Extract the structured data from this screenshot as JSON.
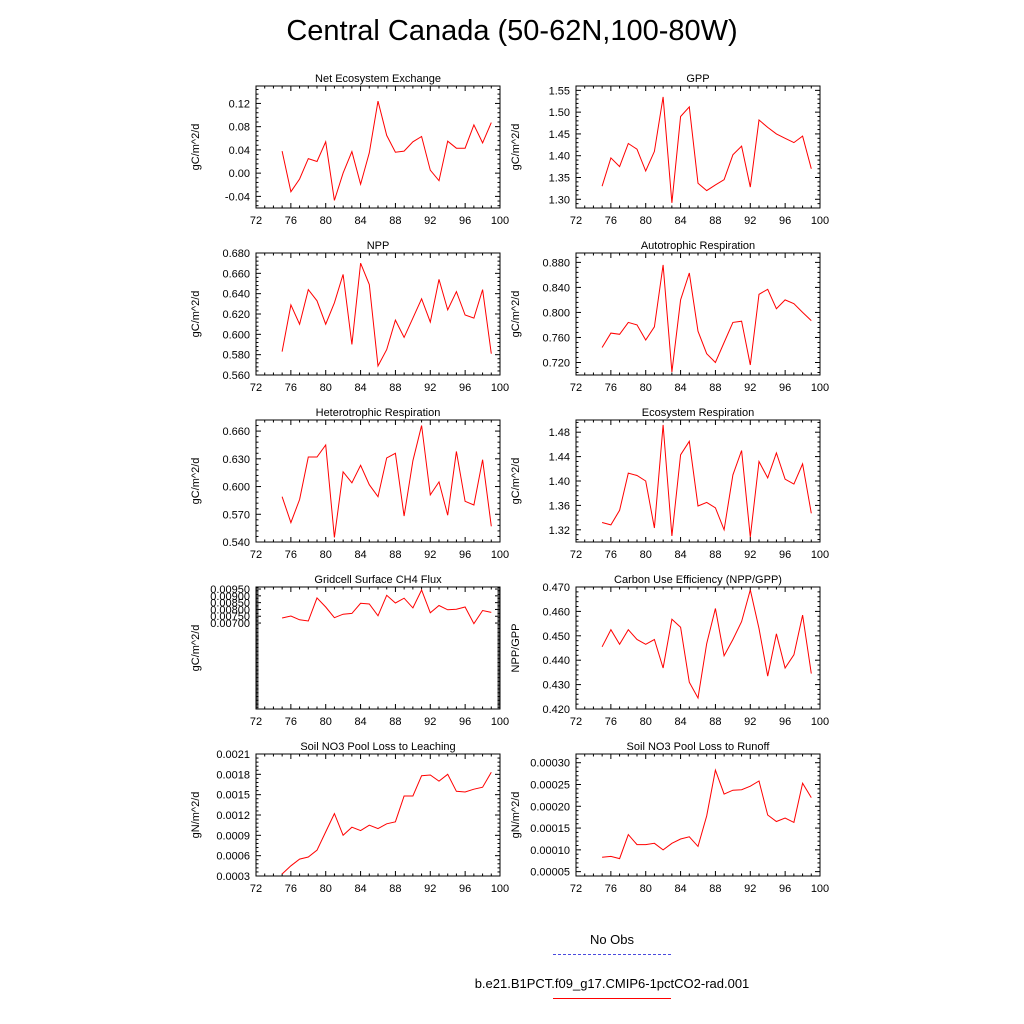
{
  "figure": {
    "title": "Central Canada (50-62N,100-80W)"
  },
  "legend": [
    {
      "label": "No Obs",
      "color": "#4a4adf",
      "style": "dashed"
    },
    {
      "label": "b.e21.B1PCT.f09_g17.CMIP6-1pctCO2-rad.001",
      "color": "#ff0000",
      "style": "solid"
    }
  ],
  "chart_data": [
    {
      "type": "line",
      "title": "Net Ecosystem Exchange",
      "ylabel": "gC/m^2/d",
      "xlim": [
        72,
        100
      ],
      "xticks": [
        72,
        76,
        80,
        84,
        88,
        92,
        96,
        100
      ],
      "ylim": [
        -0.06,
        0.15
      ],
      "yticks": [
        -0.04,
        0.0,
        0.04,
        0.08,
        0.12
      ],
      "ytick_labels": [
        "-0.04",
        "0.00",
        "0.04",
        "0.08",
        "0.12"
      ],
      "series": [
        {
          "color": "#ff0000",
          "x": [
            75,
            76,
            77,
            78,
            79,
            80,
            81,
            82,
            83,
            84,
            85,
            86,
            87,
            88,
            89,
            90,
            91,
            92,
            93,
            94,
            95,
            96,
            97,
            98,
            99
          ],
          "y": [
            0.038,
            -0.032,
            -0.01,
            0.025,
            0.02,
            0.054,
            -0.047,
            0.0,
            0.037,
            -0.019,
            0.035,
            0.124,
            0.065,
            0.036,
            0.038,
            0.054,
            0.063,
            0.005,
            -0.013,
            0.055,
            0.043,
            0.043,
            0.083,
            0.052,
            0.087
          ]
        }
      ]
    },
    {
      "type": "line",
      "title": "GPP",
      "ylabel": "gC/m^2/d",
      "xlim": [
        72,
        100
      ],
      "xticks": [
        72,
        76,
        80,
        84,
        88,
        92,
        96,
        100
      ],
      "ylim": [
        1.28,
        1.56
      ],
      "yticks": [
        1.3,
        1.35,
        1.4,
        1.45,
        1.5,
        1.55
      ],
      "ytick_labels": [
        "1.30",
        "1.35",
        "1.40",
        "1.45",
        "1.50",
        "1.55"
      ],
      "series": [
        {
          "color": "#ff0000",
          "x": [
            75,
            76,
            77,
            78,
            79,
            80,
            81,
            82,
            83,
            84,
            85,
            86,
            87,
            88,
            89,
            90,
            91,
            92,
            93,
            94,
            95,
            96,
            97,
            98,
            99
          ],
          "y": [
            1.33,
            1.395,
            1.375,
            1.428,
            1.415,
            1.365,
            1.41,
            1.535,
            1.292,
            1.49,
            1.512,
            1.337,
            1.32,
            1.333,
            1.345,
            1.402,
            1.422,
            1.328,
            1.482,
            1.465,
            1.45,
            1.44,
            1.43,
            1.445,
            1.37
          ]
        }
      ]
    },
    {
      "type": "line",
      "title": "NPP",
      "ylabel": "gC/m^2/d",
      "xlim": [
        72,
        100
      ],
      "xticks": [
        72,
        76,
        80,
        84,
        88,
        92,
        96,
        100
      ],
      "ylim": [
        0.56,
        0.68
      ],
      "yticks": [
        0.56,
        0.58,
        0.6,
        0.62,
        0.64,
        0.66,
        0.68
      ],
      "ytick_labels": [
        "0.560",
        "0.580",
        "0.600",
        "0.620",
        "0.640",
        "0.660",
        "0.680"
      ],
      "series": [
        {
          "color": "#ff0000",
          "x": [
            75,
            76,
            77,
            78,
            79,
            80,
            81,
            82,
            83,
            84,
            85,
            86,
            87,
            88,
            89,
            90,
            91,
            92,
            93,
            94,
            95,
            96,
            97,
            98,
            99
          ],
          "y": [
            0.583,
            0.629,
            0.61,
            0.644,
            0.633,
            0.61,
            0.631,
            0.659,
            0.59,
            0.67,
            0.649,
            0.569,
            0.585,
            0.614,
            0.597,
            0.616,
            0.635,
            0.612,
            0.654,
            0.624,
            0.642,
            0.619,
            0.616,
            0.644,
            0.581
          ]
        }
      ]
    },
    {
      "type": "line",
      "title": "Autotrophic Respiration",
      "ylabel": "gC/m^2/d",
      "xlim": [
        72,
        100
      ],
      "xticks": [
        72,
        76,
        80,
        84,
        88,
        92,
        96,
        100
      ],
      "ylim": [
        0.7,
        0.895
      ],
      "yticks": [
        0.72,
        0.76,
        0.8,
        0.84,
        0.88
      ],
      "ytick_labels": [
        "0.720",
        "0.760",
        "0.800",
        "0.840",
        "0.880"
      ],
      "series": [
        {
          "color": "#ff0000",
          "x": [
            75,
            76,
            77,
            78,
            79,
            80,
            81,
            82,
            83,
            84,
            85,
            86,
            87,
            88,
            89,
            90,
            91,
            92,
            93,
            94,
            95,
            96,
            97,
            98,
            99
          ],
          "y": [
            0.744,
            0.767,
            0.765,
            0.784,
            0.78,
            0.756,
            0.777,
            0.876,
            0.705,
            0.82,
            0.863,
            0.77,
            0.734,
            0.72,
            0.752,
            0.784,
            0.786,
            0.716,
            0.829,
            0.837,
            0.806,
            0.82,
            0.814,
            0.8,
            0.787
          ]
        }
      ]
    },
    {
      "type": "line",
      "title": "Heterotrophic Respiration",
      "ylabel": "gC/m^2/d",
      "xlim": [
        72,
        100
      ],
      "xticks": [
        72,
        76,
        80,
        84,
        88,
        92,
        96,
        100
      ],
      "ylim": [
        0.54,
        0.672
      ],
      "yticks": [
        0.54,
        0.57,
        0.6,
        0.63,
        0.66
      ],
      "ytick_labels": [
        "0.540",
        "0.570",
        "0.600",
        "0.630",
        "0.660"
      ],
      "series": [
        {
          "color": "#ff0000",
          "x": [
            75,
            76,
            77,
            78,
            79,
            80,
            81,
            82,
            83,
            84,
            85,
            86,
            87,
            88,
            89,
            90,
            91,
            92,
            93,
            94,
            95,
            96,
            97,
            98,
            99
          ],
          "y": [
            0.589,
            0.561,
            0.586,
            0.632,
            0.632,
            0.645,
            0.545,
            0.616,
            0.604,
            0.623,
            0.602,
            0.589,
            0.631,
            0.636,
            0.568,
            0.628,
            0.666,
            0.591,
            0.605,
            0.569,
            0.638,
            0.584,
            0.58,
            0.629,
            0.557
          ]
        }
      ]
    },
    {
      "type": "line",
      "title": "Ecosystem Respiration",
      "ylabel": "gC/m^2/d",
      "xlim": [
        72,
        100
      ],
      "xticks": [
        72,
        76,
        80,
        84,
        88,
        92,
        96,
        100
      ],
      "ylim": [
        1.3,
        1.5
      ],
      "yticks": [
        1.32,
        1.36,
        1.4,
        1.44,
        1.48
      ],
      "ytick_labels": [
        "1.32",
        "1.36",
        "1.40",
        "1.44",
        "1.48"
      ],
      "series": [
        {
          "color": "#ff0000",
          "x": [
            75,
            76,
            77,
            78,
            79,
            80,
            81,
            82,
            83,
            84,
            85,
            86,
            87,
            88,
            89,
            90,
            91,
            92,
            93,
            94,
            95,
            96,
            97,
            98,
            99
          ],
          "y": [
            1.332,
            1.328,
            1.352,
            1.413,
            1.409,
            1.4,
            1.323,
            1.492,
            1.31,
            1.443,
            1.465,
            1.359,
            1.365,
            1.356,
            1.32,
            1.41,
            1.45,
            1.308,
            1.432,
            1.405,
            1.446,
            1.403,
            1.395,
            1.428,
            1.347
          ]
        }
      ]
    },
    {
      "type": "line",
      "title": "Gridcell Surface CH4 Flux",
      "ylabel": "gC/m^2/d",
      "xlim": [
        72,
        100
      ],
      "xticks": [
        72,
        76,
        80,
        84,
        88,
        92,
        96,
        100
      ],
      "ylim": [
        0.00068,
        0.00965
      ],
      "yticks": [
        0.007,
        0.0075,
        0.008,
        0.0085,
        0.009,
        0.0095
      ],
      "ytick_labels": [
        "0.00700",
        "0.00750",
        "0.00800",
        "0.00850",
        "0.00900",
        "0.00950"
      ],
      "series": [
        {
          "color": "#ff0000",
          "x": [
            75,
            76,
            77,
            78,
            79,
            80,
            81,
            82,
            83,
            84,
            85,
            86,
            87,
            88,
            89,
            90,
            91,
            92,
            93,
            94,
            95,
            96,
            97,
            98,
            99
          ],
          "y": [
            0.00737,
            0.00752,
            0.00724,
            0.00715,
            0.00885,
            0.00818,
            0.00739,
            0.00765,
            0.00771,
            0.00845,
            0.0084,
            0.00753,
            0.00904,
            0.00847,
            0.00883,
            0.00811,
            0.00943,
            0.00775,
            0.00829,
            0.00797,
            0.00802,
            0.00818,
            0.00695,
            0.00792,
            0.00778
          ]
        }
      ]
    },
    {
      "type": "line",
      "title": "Carbon Use Efficiency (NPP/GPP)",
      "ylabel": "NPP/GPP",
      "xlim": [
        72,
        100
      ],
      "xticks": [
        72,
        76,
        80,
        84,
        88,
        92,
        96,
        100
      ],
      "ylim": [
        0.42,
        0.47
      ],
      "yticks": [
        0.42,
        0.43,
        0.44,
        0.45,
        0.46,
        0.47
      ],
      "ytick_labels": [
        "0.420",
        "0.430",
        "0.440",
        "0.450",
        "0.460",
        "0.470"
      ],
      "series": [
        {
          "color": "#ff0000",
          "x": [
            75,
            76,
            77,
            78,
            79,
            80,
            81,
            82,
            83,
            84,
            85,
            86,
            87,
            88,
            89,
            90,
            91,
            92,
            93,
            94,
            95,
            96,
            97,
            98,
            99
          ],
          "y": [
            0.4455,
            0.4525,
            0.4465,
            0.4525,
            0.4485,
            0.4465,
            0.4485,
            0.4368,
            0.4568,
            0.4535,
            0.431,
            0.4245,
            0.4468,
            0.4612,
            0.4418,
            0.4485,
            0.4558,
            0.4688,
            0.453,
            0.4335,
            0.4508,
            0.4368,
            0.4422,
            0.4585,
            0.4345
          ]
        }
      ]
    },
    {
      "type": "line",
      "title": "Soil NO3 Pool Loss to Leaching",
      "ylabel": "gN/m^2/d",
      "xlim": [
        72,
        100
      ],
      "xticks": [
        72,
        76,
        80,
        84,
        88,
        92,
        96,
        100
      ],
      "ylim": [
        0.0003,
        0.0021
      ],
      "yticks": [
        0.0003,
        0.0006,
        0.0009,
        0.0012,
        0.0015,
        0.0018,
        0.0021
      ],
      "ytick_labels": [
        "0.0003",
        "0.0006",
        "0.0009",
        "0.0012",
        "0.0015",
        "0.0018",
        "0.0021"
      ],
      "series": [
        {
          "color": "#ff0000",
          "x": [
            75,
            76,
            77,
            78,
            79,
            80,
            81,
            82,
            83,
            84,
            85,
            86,
            87,
            88,
            89,
            90,
            91,
            92,
            93,
            94,
            95,
            96,
            97,
            98,
            99
          ],
          "y": [
            0.00033,
            0.00045,
            0.00055,
            0.00058,
            0.00068,
            0.00095,
            0.00122,
            0.0009,
            0.00102,
            0.00097,
            0.00105,
            0.001,
            0.00107,
            0.0011,
            0.00148,
            0.00148,
            0.00178,
            0.00179,
            0.0017,
            0.0018,
            0.00155,
            0.00154,
            0.00158,
            0.00161,
            0.00183
          ]
        }
      ]
    },
    {
      "type": "line",
      "title": "Soil NO3 Pool Loss to Runoff",
      "ylabel": "gN/m^2/d",
      "xlim": [
        72,
        100
      ],
      "xticks": [
        72,
        76,
        80,
        84,
        88,
        92,
        96,
        100
      ],
      "ylim": [
        4e-05,
        0.00032
      ],
      "yticks": [
        5e-05,
        0.0001,
        0.00015,
        0.0002,
        0.00025,
        0.0003
      ],
      "ytick_labels": [
        "0.00005",
        "0.00010",
        "0.00015",
        "0.00020",
        "0.00025",
        "0.00030"
      ],
      "series": [
        {
          "color": "#ff0000",
          "x": [
            75,
            76,
            77,
            78,
            79,
            80,
            81,
            82,
            83,
            84,
            85,
            86,
            87,
            88,
            89,
            90,
            91,
            92,
            93,
            94,
            95,
            96,
            97,
            98,
            99
          ],
          "y": [
            8.3e-05,
            8.5e-05,
            8e-05,
            0.000135,
            0.000112,
            0.000112,
            0.000115,
            0.0001,
            0.000115,
            0.000125,
            0.00013,
            0.000108,
            0.000178,
            0.000283,
            0.000228,
            0.000237,
            0.000238,
            0.000246,
            0.000258,
            0.00018,
            0.000165,
            0.000173,
            0.000163,
            0.000253,
            0.00022
          ]
        }
      ]
    }
  ]
}
